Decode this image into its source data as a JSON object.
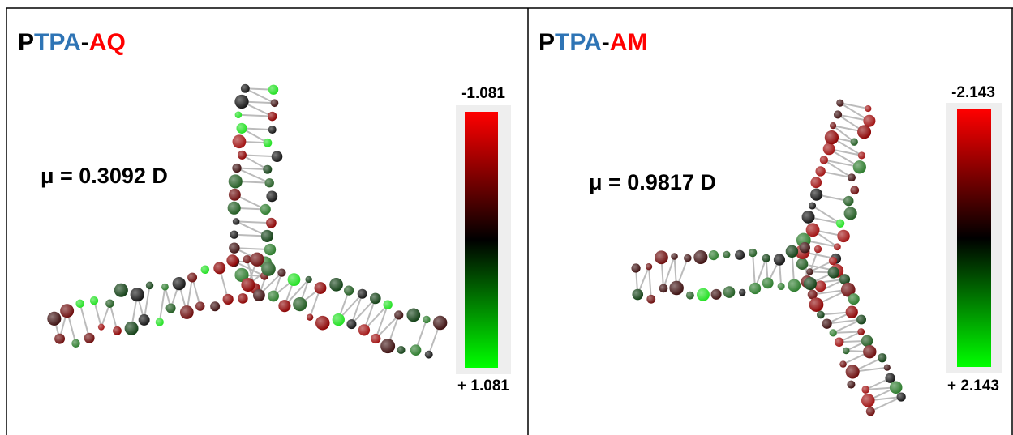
{
  "panels": [
    {
      "title": {
        "parts": [
          "P",
          "TPA",
          "-",
          "AQ"
        ]
      },
      "dipole": "μ = 0.3092 D",
      "scale": {
        "top_label": "-1.081",
        "bottom_label": "+ 1.081"
      }
    },
    {
      "title": {
        "parts": [
          "P",
          "TPA",
          "-",
          "AM"
        ]
      },
      "dipole": "μ = 0.9817 D",
      "scale": {
        "top_label": "-2.143",
        "bottom_label": "+ 2.143"
      }
    }
  ]
}
